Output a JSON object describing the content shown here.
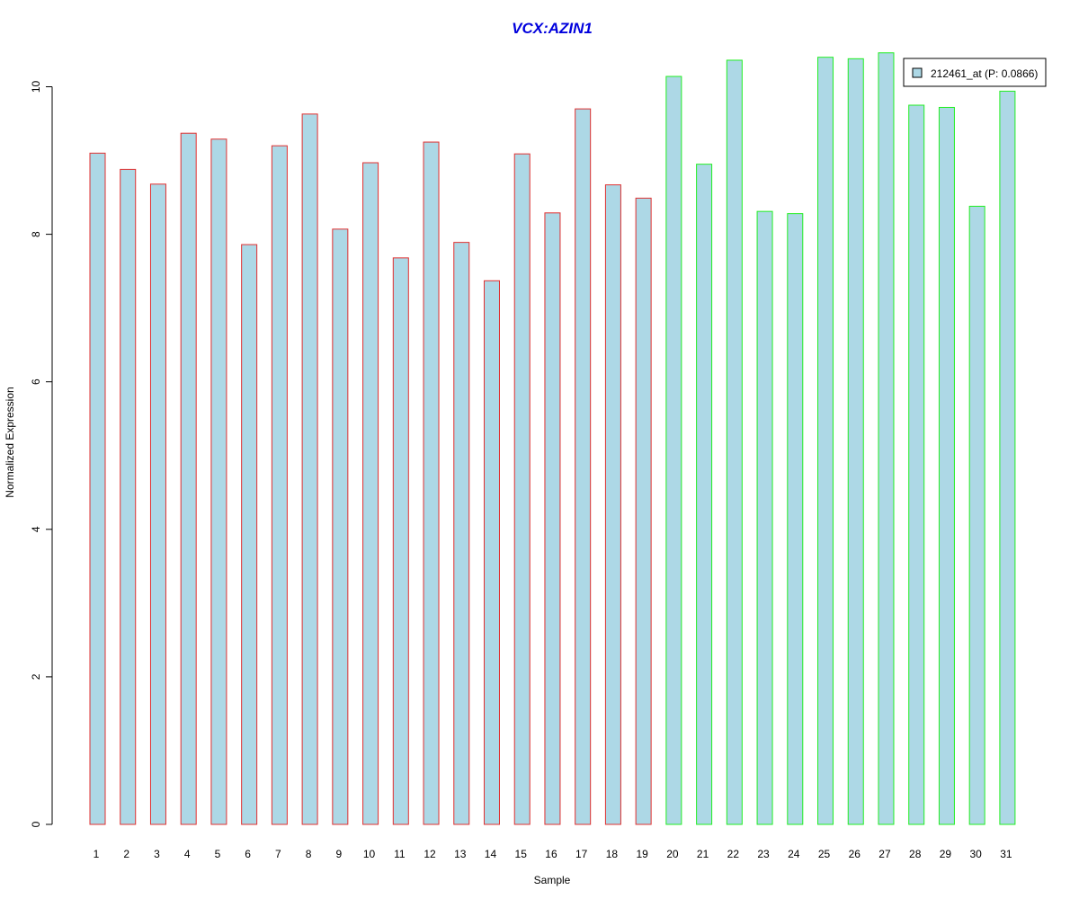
{
  "chart_data": {
    "type": "bar",
    "title": "VCX:AZIN1",
    "xlabel": "Sample",
    "ylabel": "Normalized Expression",
    "ylim": [
      0,
      10.5
    ],
    "yticks": [
      0,
      2,
      4,
      6,
      8,
      10
    ],
    "grid": false,
    "legend": {
      "position": "top-right",
      "entries": [
        "212461_at (P: 0.0866)"
      ]
    },
    "categories": [
      "1",
      "2",
      "3",
      "4",
      "5",
      "6",
      "7",
      "8",
      "9",
      "10",
      "11",
      "12",
      "13",
      "14",
      "15",
      "16",
      "17",
      "18",
      "19",
      "20",
      "21",
      "22",
      "23",
      "24",
      "25",
      "26",
      "27",
      "28",
      "29",
      "30",
      "31"
    ],
    "values": [
      9.1,
      8.88,
      8.68,
      9.37,
      9.29,
      7.86,
      9.2,
      9.63,
      8.07,
      8.97,
      7.68,
      9.25,
      7.89,
      7.37,
      9.09,
      8.29,
      9.7,
      8.67,
      8.49,
      10.14,
      8.95,
      10.36,
      8.31,
      8.28,
      10.4,
      10.38,
      10.46,
      9.75,
      9.72,
      8.38,
      9.94
    ],
    "fill_color": "#add8e6",
    "border_colors": {
      "group1": "#e03030",
      "group2": "#22ee22"
    },
    "group1_count": 19
  }
}
